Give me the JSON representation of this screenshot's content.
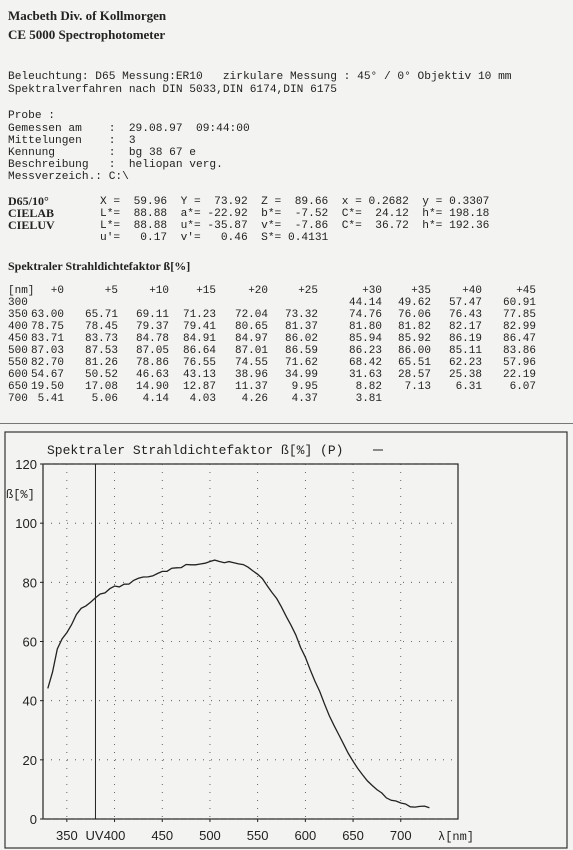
{
  "header": {
    "line1": "Macbeth  Div. of  Kollmorgen",
    "line2": "CE 5000    Spectrophotometer"
  },
  "settings": {
    "line1": "Beleuchtung: D65 Messung:ER10   zirkulare Messung : 45° / 0° Objektiv 10 mm",
    "line2": "Spektralverfahren nach DIN 5033,DIN 6174,DIN 6175"
  },
  "sample": {
    "lines": [
      "Probe :",
      "Gemessen am    :  29.08.97  09:44:00",
      "Mittelungen    :  3",
      "Kennung        :  bg 38 67 e",
      "Beschreibung   :  heliopan verg.",
      "Messverzeich.: C:\\"
    ]
  },
  "colorimetry": {
    "d65_label": "D65/10°",
    "d65_values": "X =  59.96  Y =  73.92  Z =  89.66  x = 0.2682  y = 0.3307",
    "cielab_label": "CIELAB",
    "cielab_values": "L*=  88.88  a*= -22.92  b*=  -7.52  C*=  24.12  h*= 198.18",
    "cieluv_label": "CIELUV",
    "cieluv_values": "L*=  88.88  u*= -35.87  v*=  -7.86  C*=  36.72  h*= 192.36",
    "extra_values": "u'=   0.17  v'=   0.46  S*= 0.4131"
  },
  "table": {
    "title": "Spektraler Strahldichtefaktor ß[%]",
    "corner": "[nm]",
    "columns": [
      "+0",
      "+5",
      "+10",
      "+15",
      "+20",
      "+25",
      "+30",
      "+35",
      "+40",
      "+45"
    ],
    "rows": [
      {
        "wl": "300",
        "vals": [
          "",
          "",
          "",
          "",
          "",
          "",
          "44.14",
          "49.62",
          "57.47",
          "60.91"
        ]
      },
      {
        "wl": "350",
        "vals": [
          "63.00",
          "65.71",
          "69.11",
          "71.23",
          "72.04",
          "73.32",
          "74.76",
          "76.06",
          "76.43",
          "77.85"
        ]
      },
      {
        "wl": "400",
        "vals": [
          "78.75",
          "78.45",
          "79.37",
          "79.41",
          "80.65",
          "81.37",
          "81.80",
          "81.82",
          "82.17",
          "82.99"
        ]
      },
      {
        "wl": "450",
        "vals": [
          "83.71",
          "83.73",
          "84.78",
          "84.91",
          "84.97",
          "86.02",
          "85.94",
          "85.92",
          "86.19",
          "86.47"
        ]
      },
      {
        "wl": "500",
        "vals": [
          "87.03",
          "87.53",
          "87.05",
          "86.64",
          "87.01",
          "86.59",
          "86.23",
          "86.00",
          "85.11",
          "83.86"
        ]
      },
      {
        "wl": "550",
        "vals": [
          "82.70",
          "81.26",
          "78.86",
          "76.55",
          "74.55",
          "71.62",
          "68.42",
          "65.51",
          "62.23",
          "57.96"
        ]
      },
      {
        "wl": "600",
        "vals": [
          "54.67",
          "50.52",
          "46.63",
          "43.13",
          "38.96",
          "34.99",
          "31.63",
          "28.57",
          "25.38",
          "22.19"
        ]
      },
      {
        "wl": "650",
        "vals": [
          "19.50",
          "17.08",
          "14.90",
          "12.87",
          "11.37",
          "9.95",
          "8.82",
          "7.13",
          "6.31",
          "6.07"
        ]
      },
      {
        "wl": "700",
        "vals": [
          "5.41",
          "5.06",
          "4.14",
          "4.03",
          "4.26",
          "4.37",
          "3.81",
          "",
          "",
          ""
        ]
      }
    ]
  },
  "chart_data": {
    "type": "line",
    "title": "Spektraler Strahldichtefaktor ß[%]   (P)",
    "ylabel": "ß[%]",
    "xlabel": "λ[nm]",
    "uv_label": "UV",
    "xlim": [
      325,
      760
    ],
    "ylim": [
      0,
      120
    ],
    "xticks": [
      350,
      400,
      450,
      500,
      550,
      600,
      650,
      700
    ],
    "yticks": [
      0,
      20,
      40,
      60,
      80,
      100,
      120
    ],
    "uv_marker_x": 380,
    "grid": "dotted",
    "series": [
      {
        "x": [
          330,
          335,
          340,
          345,
          350,
          355,
          360,
          365,
          370,
          375,
          380,
          385,
          390,
          395,
          400,
          405,
          410,
          415,
          420,
          425,
          430,
          435,
          440,
          445,
          450,
          455,
          460,
          465,
          470,
          475,
          480,
          485,
          490,
          495,
          500,
          505,
          510,
          515,
          520,
          525,
          530,
          535,
          540,
          545,
          550,
          555,
          560,
          565,
          570,
          575,
          580,
          585,
          590,
          595,
          600,
          605,
          610,
          615,
          620,
          625,
          630,
          635,
          640,
          645,
          650,
          655,
          660,
          665,
          670,
          675,
          680,
          685,
          690,
          695,
          700,
          705,
          710,
          715,
          720,
          725,
          730
        ],
        "y": [
          44.14,
          49.62,
          57.47,
          60.91,
          63.0,
          65.71,
          69.11,
          71.23,
          72.04,
          73.32,
          74.76,
          76.06,
          76.43,
          77.85,
          78.75,
          78.45,
          79.37,
          79.41,
          80.65,
          81.37,
          81.8,
          81.82,
          82.17,
          82.99,
          83.71,
          83.73,
          84.78,
          84.91,
          84.97,
          86.02,
          85.94,
          85.92,
          86.19,
          86.47,
          87.03,
          87.53,
          87.05,
          86.64,
          87.01,
          86.59,
          86.23,
          86.0,
          85.11,
          83.86,
          82.7,
          81.26,
          78.86,
          76.55,
          74.55,
          71.62,
          68.42,
          65.51,
          62.23,
          57.96,
          54.67,
          50.52,
          46.63,
          43.13,
          38.96,
          34.99,
          31.63,
          28.57,
          25.38,
          22.19,
          19.5,
          17.08,
          14.9,
          12.87,
          11.37,
          9.95,
          8.82,
          7.13,
          6.31,
          6.07,
          5.41,
          5.06,
          4.14,
          4.03,
          4.26,
          4.37,
          3.81
        ]
      }
    ]
  }
}
